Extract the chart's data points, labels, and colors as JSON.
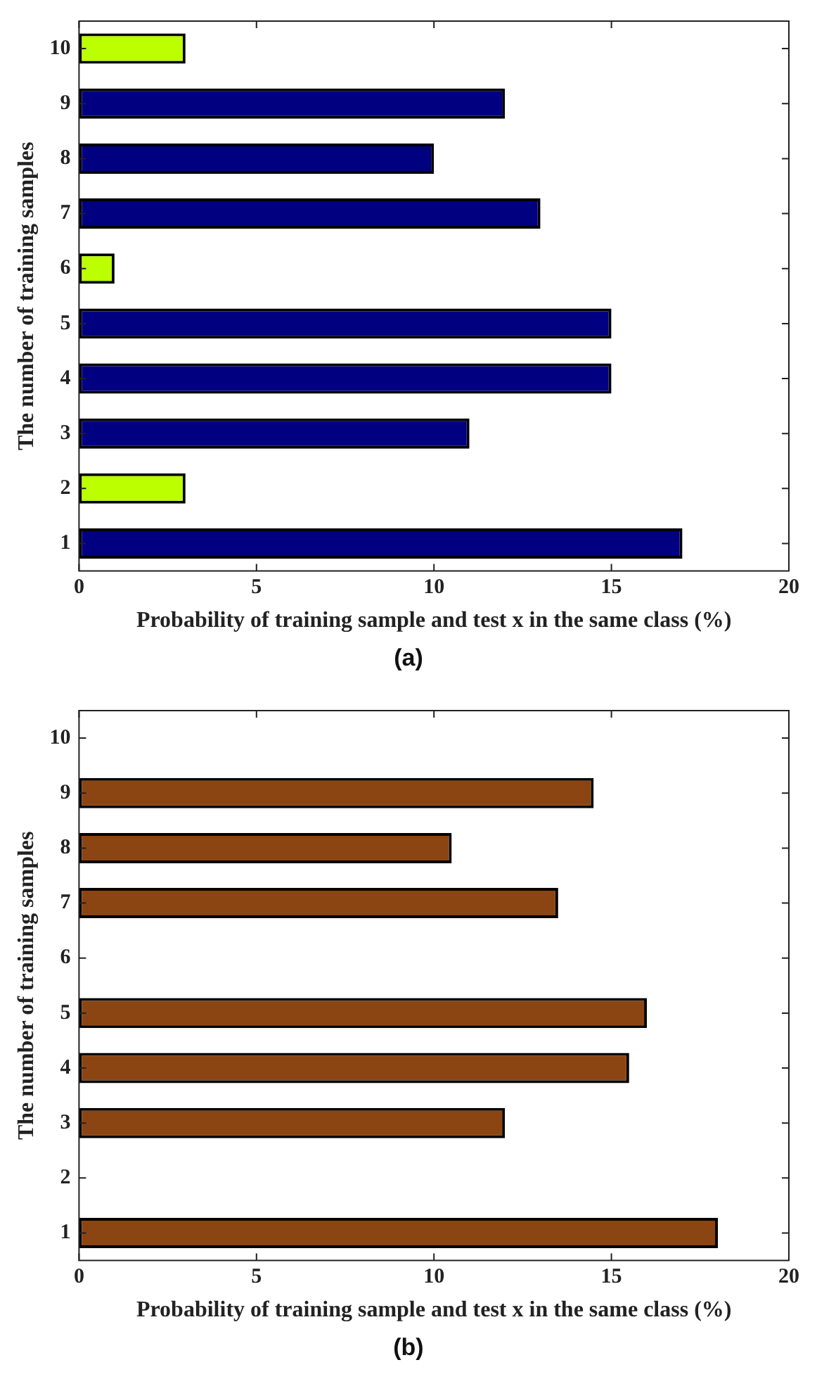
{
  "chart_data": [
    {
      "type": "bar",
      "orientation": "horizontal",
      "xlabel": "Probability of training sample and test x in the same class (%)",
      "ylabel": "The number of training samples",
      "annotations": [
        "(a)"
      ],
      "categories": [
        "10",
        "9",
        "8",
        "7",
        "6",
        "5",
        "4",
        "3",
        "2",
        "1"
      ],
      "values": [
        3,
        12,
        10,
        13,
        1,
        15,
        15,
        11,
        3,
        17
      ],
      "colors": [
        "#bbff00",
        "#000080",
        "#000080",
        "#000080",
        "#bbff00",
        "#000080",
        "#000080",
        "#000080",
        "#bbff00",
        "#000080"
      ],
      "xlim": [
        0,
        20
      ],
      "xticks": [
        0,
        5,
        10,
        15,
        20
      ],
      "grid": false,
      "legend": false
    },
    {
      "type": "bar",
      "orientation": "horizontal",
      "xlabel": "Probability of training sample and test x in the same class (%)",
      "ylabel": "The number of training samples",
      "annotations": [
        "(b)"
      ],
      "categories": [
        "10",
        "9",
        "8",
        "7",
        "6",
        "5",
        "4",
        "3",
        "2",
        "1"
      ],
      "values": [
        0,
        14.5,
        10.5,
        13.5,
        0,
        16,
        15.5,
        12,
        0,
        18
      ],
      "color": "#8b4513",
      "xlim": [
        0,
        20
      ],
      "xticks": [
        0,
        5,
        10,
        15,
        20
      ],
      "grid": false,
      "legend": false
    }
  ]
}
